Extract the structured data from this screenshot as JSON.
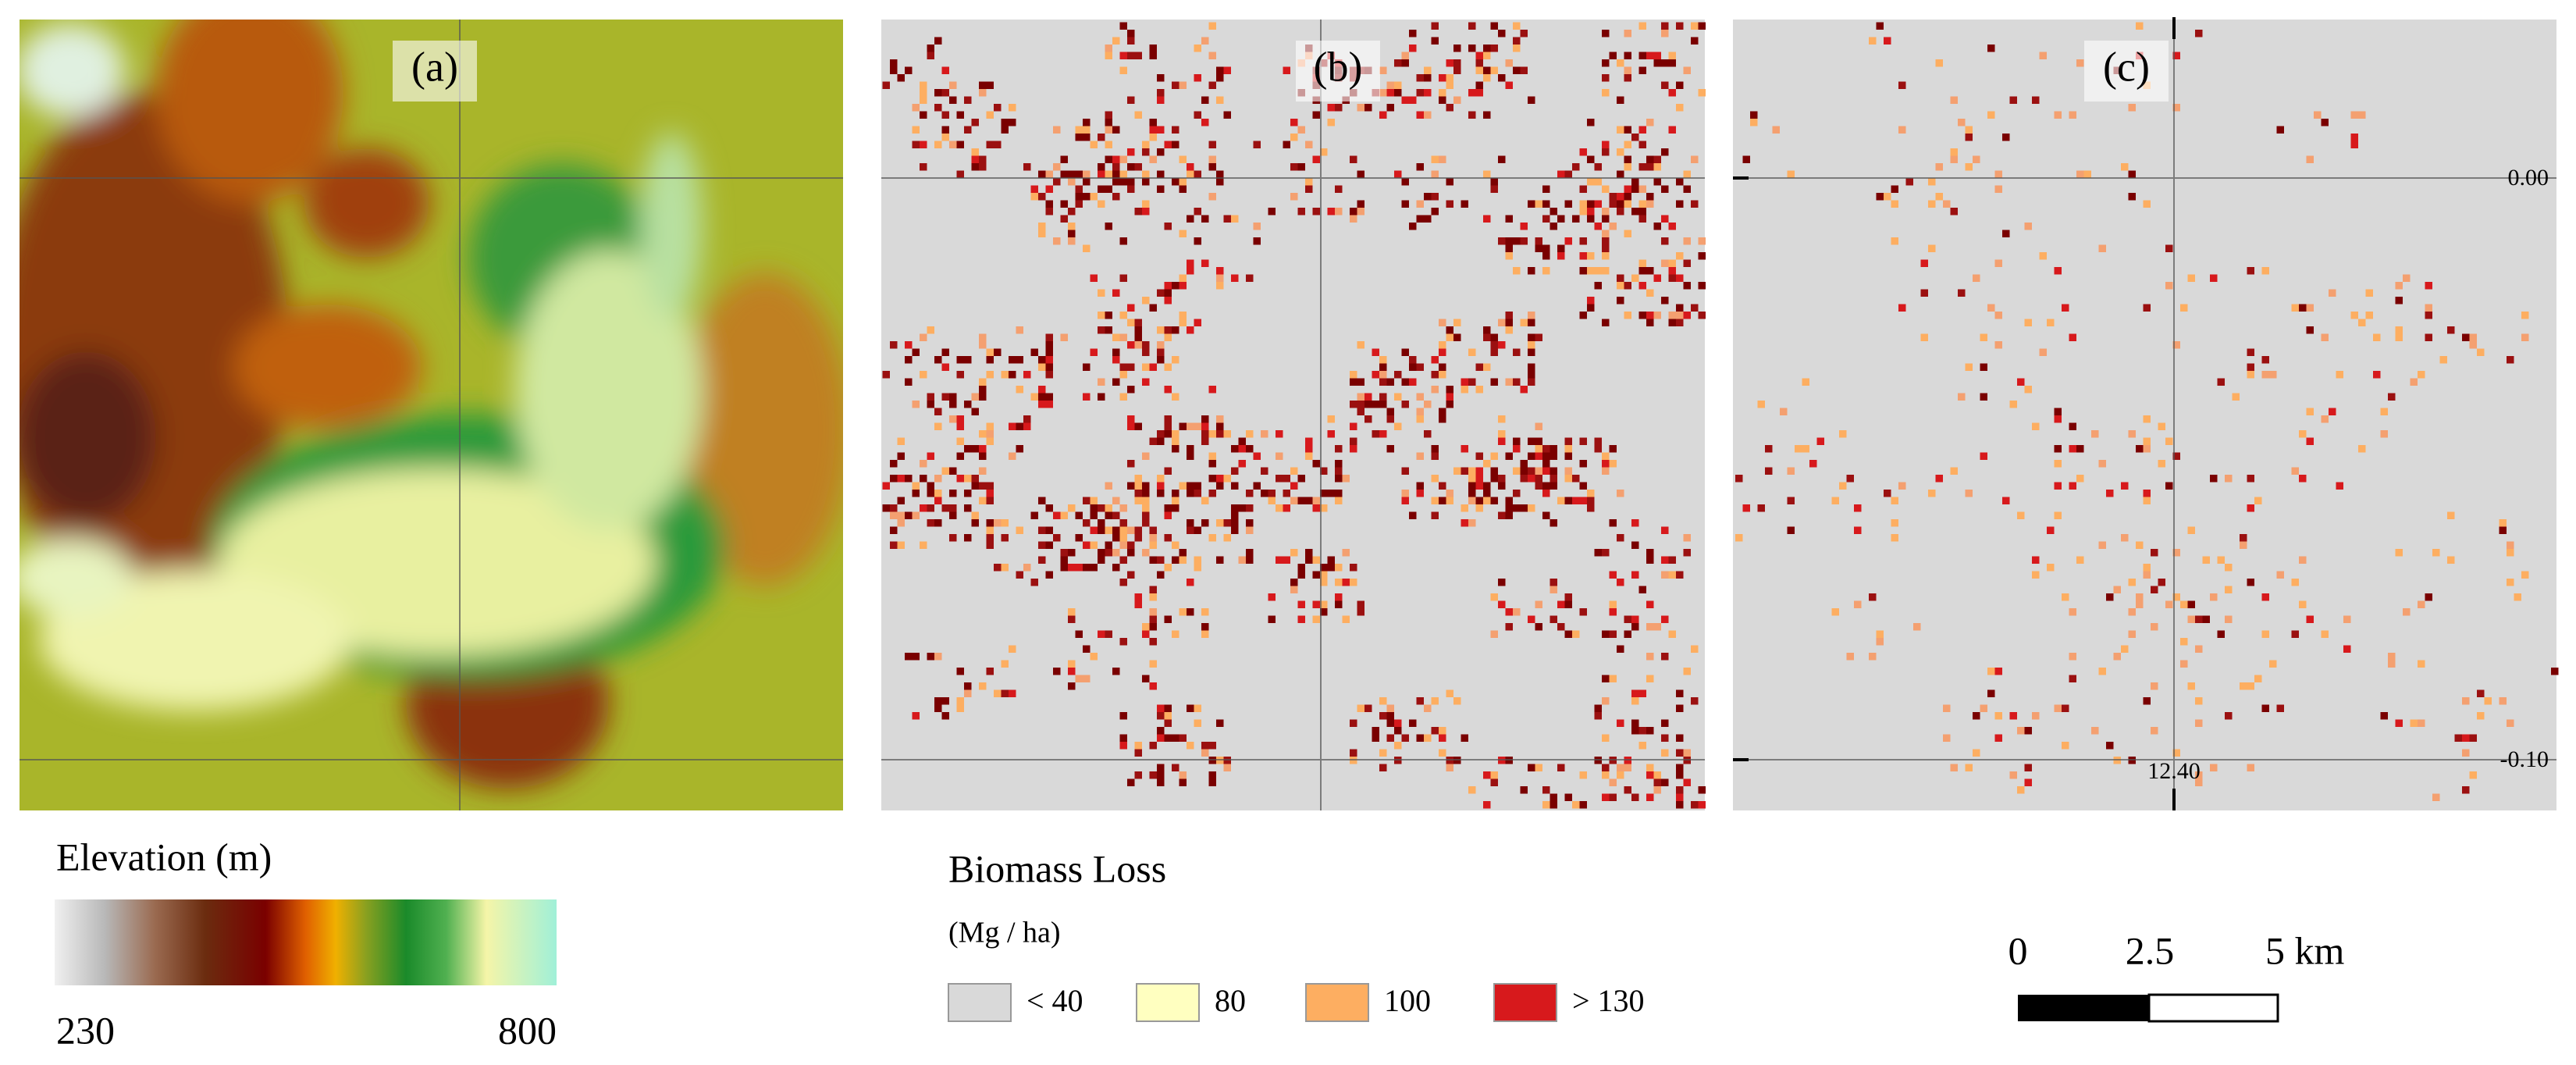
{
  "panels": [
    {
      "label": "(a)"
    },
    {
      "label": "(b)"
    },
    {
      "label": "(c)"
    }
  ],
  "elevation_legend": {
    "title": "Elevation (m)",
    "min": "230",
    "max": "800"
  },
  "biomass_legend": {
    "title": "Biomass Loss",
    "unit": "(Mg / ha)",
    "items": [
      {
        "label": "< 40",
        "color": "#d9d9d9"
      },
      {
        "label": "80",
        "color": "#ffffc0"
      },
      {
        "label": "100",
        "color": "#fdae61"
      },
      {
        "label": "> 130",
        "color": "#d7191c"
      }
    ]
  },
  "coordinates": {
    "lat": [
      "0.00",
      "-0.10"
    ],
    "lon": [
      "12.40"
    ]
  },
  "scale_bar": {
    "labels": [
      "0",
      "2.5",
      "5 km"
    ]
  }
}
